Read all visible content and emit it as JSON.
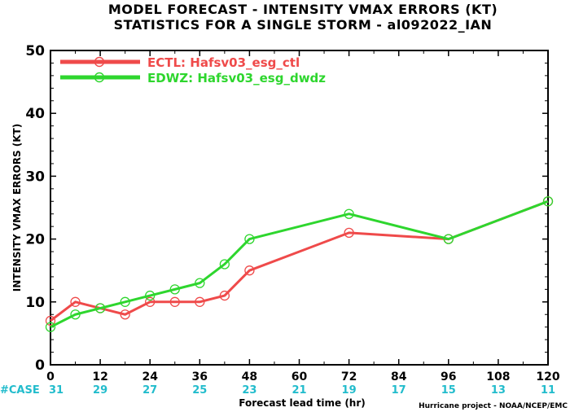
{
  "chart_data": {
    "type": "line",
    "title": [
      "MODEL FORECAST - INTENSITY VMAX ERRORS (KT)",
      "STATISTICS FOR A SINGLE STORM - al092022_IAN"
    ],
    "xlabel": "Forecast lead time (hr)",
    "ylabel": "INTENSITY VMAX ERRORS (KT)",
    "xlim": [
      0,
      120
    ],
    "ylim": [
      0,
      50
    ],
    "x_ticks": [
      0,
      12,
      24,
      36,
      48,
      60,
      72,
      84,
      96,
      108,
      120
    ],
    "y_ticks": [
      0,
      10,
      20,
      30,
      40,
      50
    ],
    "case_label": "#CASE",
    "case_counts": [
      31,
      29,
      27,
      25,
      23,
      21,
      19,
      17,
      15,
      13,
      11
    ],
    "legend_position": "top-left",
    "credit": "Hurricane project - NOAA/NCEP/EMC",
    "series": [
      {
        "name": "ECTL: Hafsv03_esg_ctl",
        "color": "#ef4a4a",
        "x": [
          0,
          6,
          12,
          18,
          24,
          30,
          36,
          42,
          48,
          72,
          96,
          120
        ],
        "y": [
          7,
          10,
          9,
          8,
          10,
          10,
          10,
          11,
          15,
          21,
          20,
          26
        ]
      },
      {
        "name": "EDWZ: Hafsv03_esg_dwdz",
        "color": "#2ed62e",
        "x": [
          0,
          6,
          12,
          18,
          24,
          30,
          36,
          42,
          48,
          72,
          96,
          120
        ],
        "y": [
          6,
          8,
          9,
          10,
          11,
          12,
          13,
          16,
          20,
          24,
          20,
          26
        ]
      }
    ]
  }
}
